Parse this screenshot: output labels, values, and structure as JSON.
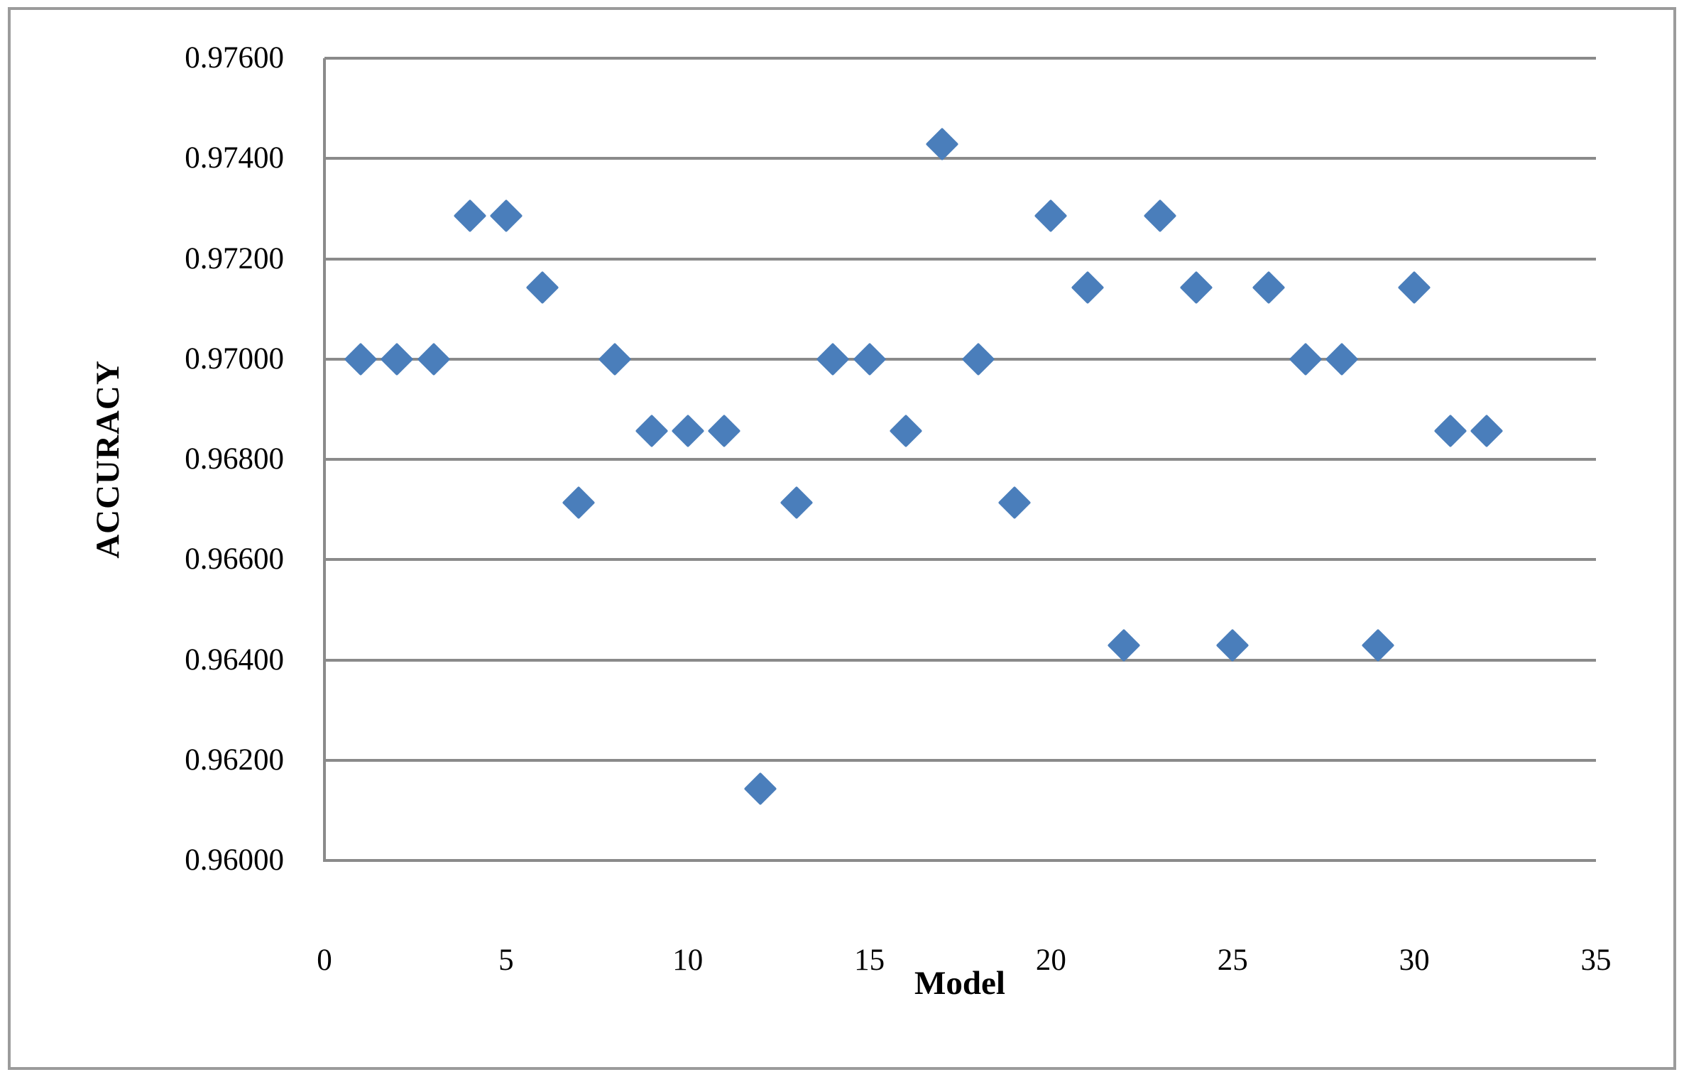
{
  "chart_data": {
    "type": "scatter",
    "title": "",
    "xlabel": "Model",
    "ylabel": "ACCURACY",
    "x": [
      1,
      2,
      3,
      4,
      5,
      6,
      7,
      8,
      9,
      10,
      11,
      12,
      13,
      14,
      15,
      16,
      17,
      18,
      19,
      20,
      21,
      22,
      23,
      24,
      25,
      26,
      27,
      28,
      29,
      30,
      31,
      32
    ],
    "y": [
      0.97,
      0.97,
      0.97,
      0.97286,
      0.97286,
      0.97143,
      0.96714,
      0.97,
      0.96857,
      0.96857,
      0.96857,
      0.96143,
      0.96714,
      0.97,
      0.97,
      0.96857,
      0.97429,
      0.97,
      0.96714,
      0.97286,
      0.97143,
      0.96429,
      0.97286,
      0.97143,
      0.96429,
      0.97143,
      0.97,
      0.97,
      0.96429,
      0.97143,
      0.96857,
      0.96857
    ],
    "xlim": [
      0,
      35
    ],
    "ylim": [
      0.96,
      0.976
    ],
    "x_ticks": [
      0,
      5,
      10,
      15,
      20,
      25,
      30,
      35
    ],
    "y_tick_labels": [
      "0.96000",
      "0.96200",
      "0.96400",
      "0.96600",
      "0.96800",
      "0.97000",
      "0.97200",
      "0.97400",
      "0.97600"
    ],
    "grid": "horizontal",
    "legend": "none",
    "marker": "diamond",
    "marker_color": "#4a7ebb",
    "gridline_color": "#8a8a8a",
    "border_color": "#9b9b9b",
    "text_color": "#000000"
  }
}
